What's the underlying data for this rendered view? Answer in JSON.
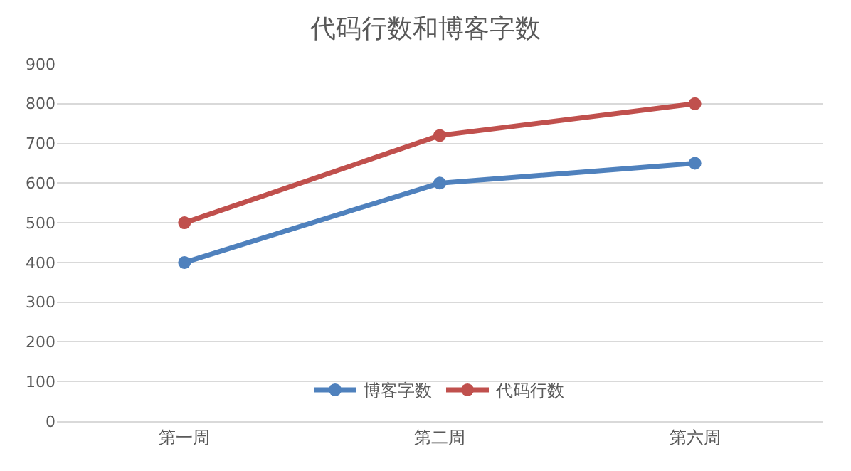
{
  "chart_data": {
    "type": "line",
    "title": "代码行数和博客字数",
    "categories": [
      "第一周",
      "第二周",
      "第六周"
    ],
    "series": [
      {
        "name": "博客字数",
        "color": "#4f81bd",
        "values": [
          400,
          600,
          650
        ]
      },
      {
        "name": "代码行数",
        "color": "#c0504d",
        "values": [
          500,
          720,
          800
        ]
      }
    ],
    "ylim": [
      0,
      900
    ],
    "yticks": [
      0,
      100,
      200,
      300,
      400,
      500,
      600,
      700,
      800,
      900
    ],
    "grid": "y",
    "legend": "bottom",
    "marker": "circle",
    "line_style": "solid"
  }
}
